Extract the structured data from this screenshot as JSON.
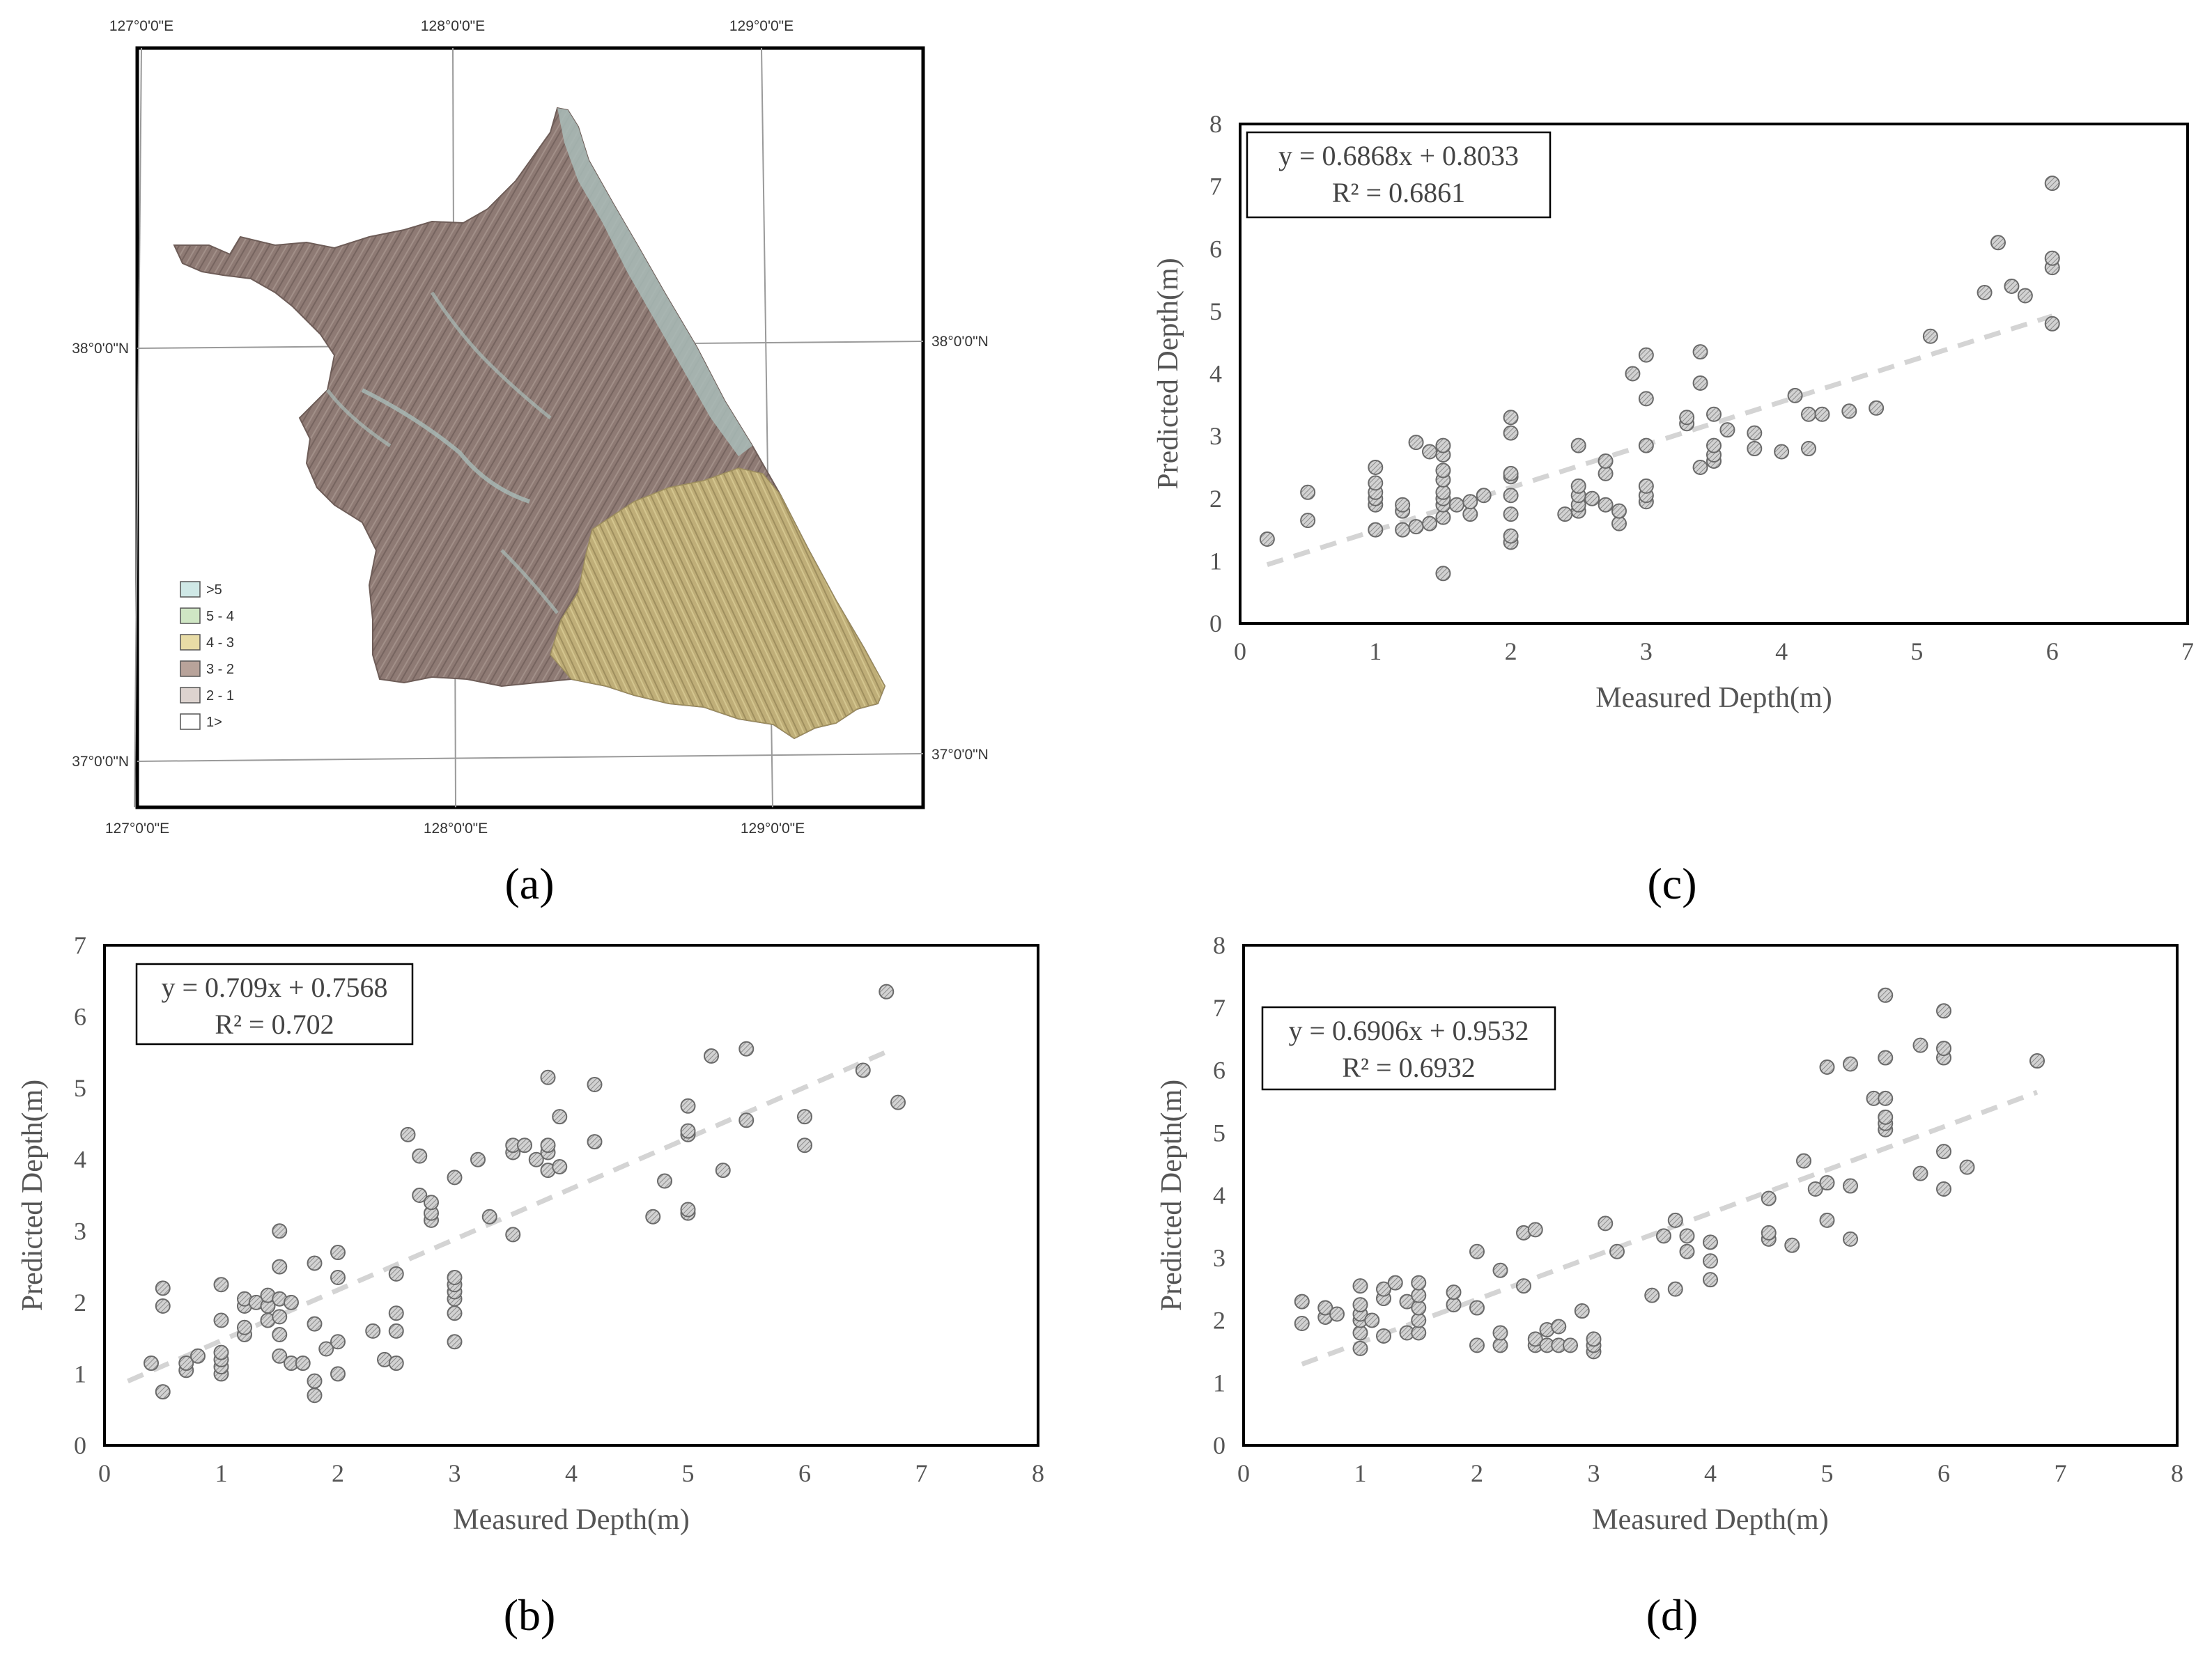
{
  "panel_labels": [
    "(a)",
    "(b)",
    "(c)",
    "(d)"
  ],
  "map": {
    "lon_labels": [
      "127°0'0\"E",
      "128°0'0\"E",
      "129°0'0\"E"
    ],
    "lat_labels": [
      "38°0'0\"N",
      "37°0'0\"N"
    ],
    "legend": [
      {
        "label": ">5",
        "color": "#cfe8e6"
      },
      {
        "label": "5 - 4",
        "color": "#cfe6c4"
      },
      {
        "label": "4 - 3",
        "color": "#e8dca6"
      },
      {
        "label": "3 - 2",
        "color": "#b8a39a"
      },
      {
        "label": "2 - 1",
        "color": "#ddd3cf"
      },
      {
        "label": "1>",
        "color": "#ffffff"
      }
    ],
    "colors": {
      "relief": "#8b7670",
      "highland": "#c2b27c",
      "coast": "#9fb4b0"
    }
  },
  "chart_data": [
    {
      "id": "c",
      "type": "scatter",
      "xlabel": "Measured Depth(m)",
      "ylabel": "Predicted Depth(m)",
      "xlim": [
        0,
        7
      ],
      "ylim": [
        0,
        8
      ],
      "xticks": [
        "0",
        "1",
        "2",
        "3",
        "4",
        "5",
        "6",
        "7"
      ],
      "yticks": [
        "0",
        "1",
        "2",
        "3",
        "4",
        "5",
        "6",
        "7",
        "8"
      ],
      "equation": "y = 0.6868x + 0.8033",
      "r2": "R² = 0.6861",
      "trend": {
        "slope": 0.6868,
        "intercept": 0.8033,
        "x_range": [
          0.2,
          6
        ]
      },
      "points": [
        [
          0.2,
          1.35
        ],
        [
          0.5,
          1.65
        ],
        [
          0.5,
          2.1
        ],
        [
          1,
          1.5
        ],
        [
          1,
          1.9
        ],
        [
          1,
          2.0
        ],
        [
          1,
          2.1
        ],
        [
          1,
          2.25
        ],
        [
          1,
          2.5
        ],
        [
          1.2,
          1.5
        ],
        [
          1.2,
          1.8
        ],
        [
          1.2,
          1.9
        ],
        [
          1.3,
          1.55
        ],
        [
          1.3,
          2.9
        ],
        [
          1.4,
          1.6
        ],
        [
          1.4,
          2.75
        ],
        [
          1.5,
          0.8
        ],
        [
          1.5,
          1.7
        ],
        [
          1.5,
          1.9
        ],
        [
          1.5,
          2.0
        ],
        [
          1.5,
          2.1
        ],
        [
          1.5,
          2.3
        ],
        [
          1.5,
          2.45
        ],
        [
          1.5,
          2.7
        ],
        [
          1.5,
          2.85
        ],
        [
          1.6,
          1.9
        ],
        [
          1.7,
          1.75
        ],
        [
          1.7,
          1.95
        ],
        [
          1.8,
          2.05
        ],
        [
          2,
          1.3
        ],
        [
          2,
          1.4
        ],
        [
          2,
          1.75
        ],
        [
          2,
          2.05
        ],
        [
          2,
          2.35
        ],
        [
          2,
          2.4
        ],
        [
          2,
          3.05
        ],
        [
          2,
          3.3
        ],
        [
          2.4,
          1.75
        ],
        [
          2.5,
          1.8
        ],
        [
          2.5,
          1.9
        ],
        [
          2.5,
          2.05
        ],
        [
          2.5,
          2.2
        ],
        [
          2.5,
          2.85
        ],
        [
          2.6,
          2.0
        ],
        [
          2.7,
          1.9
        ],
        [
          2.7,
          2.4
        ],
        [
          2.7,
          2.6
        ],
        [
          2.8,
          1.6
        ],
        [
          2.8,
          1.8
        ],
        [
          2.9,
          4.0
        ],
        [
          3,
          1.95
        ],
        [
          3,
          2.05
        ],
        [
          3,
          2.2
        ],
        [
          3,
          2.85
        ],
        [
          3,
          3.6
        ],
        [
          3,
          4.3
        ],
        [
          3.3,
          3.2
        ],
        [
          3.3,
          3.3
        ],
        [
          3.4,
          2.5
        ],
        [
          3.4,
          3.85
        ],
        [
          3.4,
          4.35
        ],
        [
          3.5,
          2.6
        ],
        [
          3.5,
          2.7
        ],
        [
          3.5,
          2.85
        ],
        [
          3.5,
          3.35
        ],
        [
          3.6,
          3.1
        ],
        [
          3.8,
          2.8
        ],
        [
          3.8,
          3.05
        ],
        [
          4,
          2.75
        ],
        [
          4.1,
          3.65
        ],
        [
          4.2,
          2.8
        ],
        [
          4.2,
          3.35
        ],
        [
          4.3,
          3.35
        ],
        [
          4.5,
          3.4
        ],
        [
          4.7,
          3.45
        ],
        [
          5.1,
          4.6
        ],
        [
          5.5,
          5.3
        ],
        [
          5.6,
          6.1
        ],
        [
          5.7,
          5.4
        ],
        [
          5.8,
          5.25
        ],
        [
          6,
          4.8
        ],
        [
          6,
          5.7
        ],
        [
          6,
          5.85
        ],
        [
          6,
          7.05
        ]
      ]
    },
    {
      "id": "b",
      "type": "scatter",
      "xlabel": "Measured Depth(m)",
      "ylabel": "Predicted Depth(m)",
      "xlim": [
        0,
        8
      ],
      "ylim": [
        0,
        7
      ],
      "xticks": [
        "0",
        "1",
        "2",
        "3",
        "4",
        "5",
        "6",
        "7",
        "8"
      ],
      "yticks": [
        "0",
        "1",
        "2",
        "3",
        "4",
        "5",
        "6",
        "7"
      ],
      "equation": "y = 0.709x + 0.7568",
      "r2": "R² = 0.702",
      "trend": {
        "slope": 0.709,
        "intercept": 0.7568,
        "x_range": [
          0.2,
          6.7
        ]
      },
      "points": [
        [
          0.4,
          1.15
        ],
        [
          0.5,
          0.75
        ],
        [
          0.5,
          1.95
        ],
        [
          0.5,
          2.2
        ],
        [
          0.7,
          1.05
        ],
        [
          0.7,
          1.15
        ],
        [
          0.8,
          1.25
        ],
        [
          1,
          1.0
        ],
        [
          1,
          1.1
        ],
        [
          1,
          1.2
        ],
        [
          1,
          1.3
        ],
        [
          1,
          1.75
        ],
        [
          1,
          2.25
        ],
        [
          1.2,
          1.55
        ],
        [
          1.2,
          1.65
        ],
        [
          1.2,
          1.95
        ],
        [
          1.2,
          2.05
        ],
        [
          1.3,
          2.0
        ],
        [
          1.4,
          1.75
        ],
        [
          1.4,
          1.95
        ],
        [
          1.4,
          2.1
        ],
        [
          1.5,
          1.25
        ],
        [
          1.5,
          1.55
        ],
        [
          1.5,
          1.8
        ],
        [
          1.5,
          2.05
        ],
        [
          1.5,
          2.5
        ],
        [
          1.5,
          3.0
        ],
        [
          1.6,
          1.15
        ],
        [
          1.6,
          2.0
        ],
        [
          1.7,
          1.15
        ],
        [
          1.8,
          0.7
        ],
        [
          1.8,
          0.9
        ],
        [
          1.8,
          1.7
        ],
        [
          1.8,
          2.55
        ],
        [
          1.9,
          1.35
        ],
        [
          2,
          1.0
        ],
        [
          2,
          1.45
        ],
        [
          2,
          2.35
        ],
        [
          2,
          2.7
        ],
        [
          2.3,
          1.6
        ],
        [
          2.4,
          1.2
        ],
        [
          2.5,
          1.15
        ],
        [
          2.5,
          1.6
        ],
        [
          2.5,
          1.85
        ],
        [
          2.5,
          2.4
        ],
        [
          2.6,
          4.35
        ],
        [
          2.7,
          3.5
        ],
        [
          2.7,
          4.05
        ],
        [
          2.8,
          3.15
        ],
        [
          2.8,
          3.25
        ],
        [
          2.8,
          3.4
        ],
        [
          3,
          1.45
        ],
        [
          3,
          1.85
        ],
        [
          3,
          2.05
        ],
        [
          3,
          2.15
        ],
        [
          3,
          2.25
        ],
        [
          3,
          2.35
        ],
        [
          3,
          3.75
        ],
        [
          3.2,
          4.0
        ],
        [
          3.3,
          3.2
        ],
        [
          3.5,
          2.95
        ],
        [
          3.5,
          4.1
        ],
        [
          3.5,
          4.2
        ],
        [
          3.6,
          4.2
        ],
        [
          3.7,
          4.0
        ],
        [
          3.8,
          3.85
        ],
        [
          3.8,
          4.1
        ],
        [
          3.8,
          4.2
        ],
        [
          3.8,
          5.15
        ],
        [
          3.9,
          3.9
        ],
        [
          3.9,
          4.6
        ],
        [
          4.2,
          4.25
        ],
        [
          4.2,
          5.05
        ],
        [
          4.7,
          3.2
        ],
        [
          4.8,
          3.7
        ],
        [
          5,
          3.25
        ],
        [
          5,
          3.3
        ],
        [
          5,
          4.35
        ],
        [
          5,
          4.4
        ],
        [
          5,
          4.75
        ],
        [
          5.2,
          5.45
        ],
        [
          5.3,
          3.85
        ],
        [
          5.5,
          4.55
        ],
        [
          5.5,
          5.55
        ],
        [
          6,
          4.2
        ],
        [
          6,
          4.6
        ],
        [
          6.5,
          5.25
        ],
        [
          6.7,
          6.35
        ],
        [
          6.8,
          4.8
        ]
      ]
    },
    {
      "id": "d",
      "type": "scatter",
      "xlabel": "Measured Depth(m)",
      "ylabel": "Predicted Depth(m)",
      "xlim": [
        0,
        8
      ],
      "ylim": [
        0,
        8
      ],
      "xticks": [
        "0",
        "1",
        "2",
        "3",
        "4",
        "5",
        "6",
        "7",
        "8"
      ],
      "yticks": [
        "0",
        "1",
        "2",
        "3",
        "4",
        "5",
        "6",
        "7",
        "8"
      ],
      "equation": "y = 0.6906x + 0.9532",
      "r2": "R² = 0.6932",
      "trend": {
        "slope": 0.6906,
        "intercept": 0.9532,
        "x_range": [
          0.5,
          6.8
        ]
      },
      "points": [
        [
          0.5,
          1.95
        ],
        [
          0.5,
          2.3
        ],
        [
          0.7,
          2.05
        ],
        [
          0.7,
          2.2
        ],
        [
          0.8,
          2.1
        ],
        [
          1,
          1.55
        ],
        [
          1,
          1.8
        ],
        [
          1,
          2.0
        ],
        [
          1,
          2.1
        ],
        [
          1,
          2.25
        ],
        [
          1,
          2.55
        ],
        [
          1.1,
          2.0
        ],
        [
          1.2,
          1.75
        ],
        [
          1.2,
          2.35
        ],
        [
          1.2,
          2.5
        ],
        [
          1.3,
          2.6
        ],
        [
          1.4,
          1.8
        ],
        [
          1.4,
          2.3
        ],
        [
          1.5,
          1.8
        ],
        [
          1.5,
          2.0
        ],
        [
          1.5,
          2.2
        ],
        [
          1.5,
          2.4
        ],
        [
          1.5,
          2.6
        ],
        [
          1.8,
          2.25
        ],
        [
          1.8,
          2.45
        ],
        [
          2,
          1.6
        ],
        [
          2,
          2.2
        ],
        [
          2,
          3.1
        ],
        [
          2.2,
          1.6
        ],
        [
          2.2,
          1.8
        ],
        [
          2.2,
          2.8
        ],
        [
          2.4,
          2.55
        ],
        [
          2.4,
          3.4
        ],
        [
          2.5,
          1.6
        ],
        [
          2.5,
          1.7
        ],
        [
          2.5,
          3.45
        ],
        [
          2.6,
          1.6
        ],
        [
          2.6,
          1.85
        ],
        [
          2.7,
          1.6
        ],
        [
          2.7,
          1.9
        ],
        [
          2.8,
          1.6
        ],
        [
          2.9,
          2.15
        ],
        [
          3,
          1.5
        ],
        [
          3,
          1.6
        ],
        [
          3,
          1.7
        ],
        [
          3.1,
          3.55
        ],
        [
          3.2,
          3.1
        ],
        [
          3.5,
          2.4
        ],
        [
          3.6,
          3.35
        ],
        [
          3.7,
          2.5
        ],
        [
          3.7,
          3.6
        ],
        [
          3.8,
          3.1
        ],
        [
          3.8,
          3.35
        ],
        [
          4,
          2.65
        ],
        [
          4,
          2.95
        ],
        [
          4,
          3.25
        ],
        [
          4.5,
          3.3
        ],
        [
          4.5,
          3.4
        ],
        [
          4.5,
          3.95
        ],
        [
          4.7,
          3.2
        ],
        [
          4.8,
          4.55
        ],
        [
          4.9,
          4.1
        ],
        [
          5,
          3.6
        ],
        [
          5,
          4.2
        ],
        [
          5,
          6.05
        ],
        [
          5.2,
          3.3
        ],
        [
          5.2,
          4.15
        ],
        [
          5.2,
          6.1
        ],
        [
          5.4,
          5.55
        ],
        [
          5.5,
          5.05
        ],
        [
          5.5,
          5.15
        ],
        [
          5.5,
          5.25
        ],
        [
          5.5,
          5.55
        ],
        [
          5.5,
          6.2
        ],
        [
          5.5,
          7.2
        ],
        [
          5.8,
          4.35
        ],
        [
          5.8,
          6.4
        ],
        [
          6,
          4.1
        ],
        [
          6,
          4.7
        ],
        [
          6,
          6.2
        ],
        [
          6,
          6.35
        ],
        [
          6,
          6.95
        ],
        [
          6.2,
          4.45
        ],
        [
          6.8,
          6.15
        ]
      ]
    }
  ]
}
